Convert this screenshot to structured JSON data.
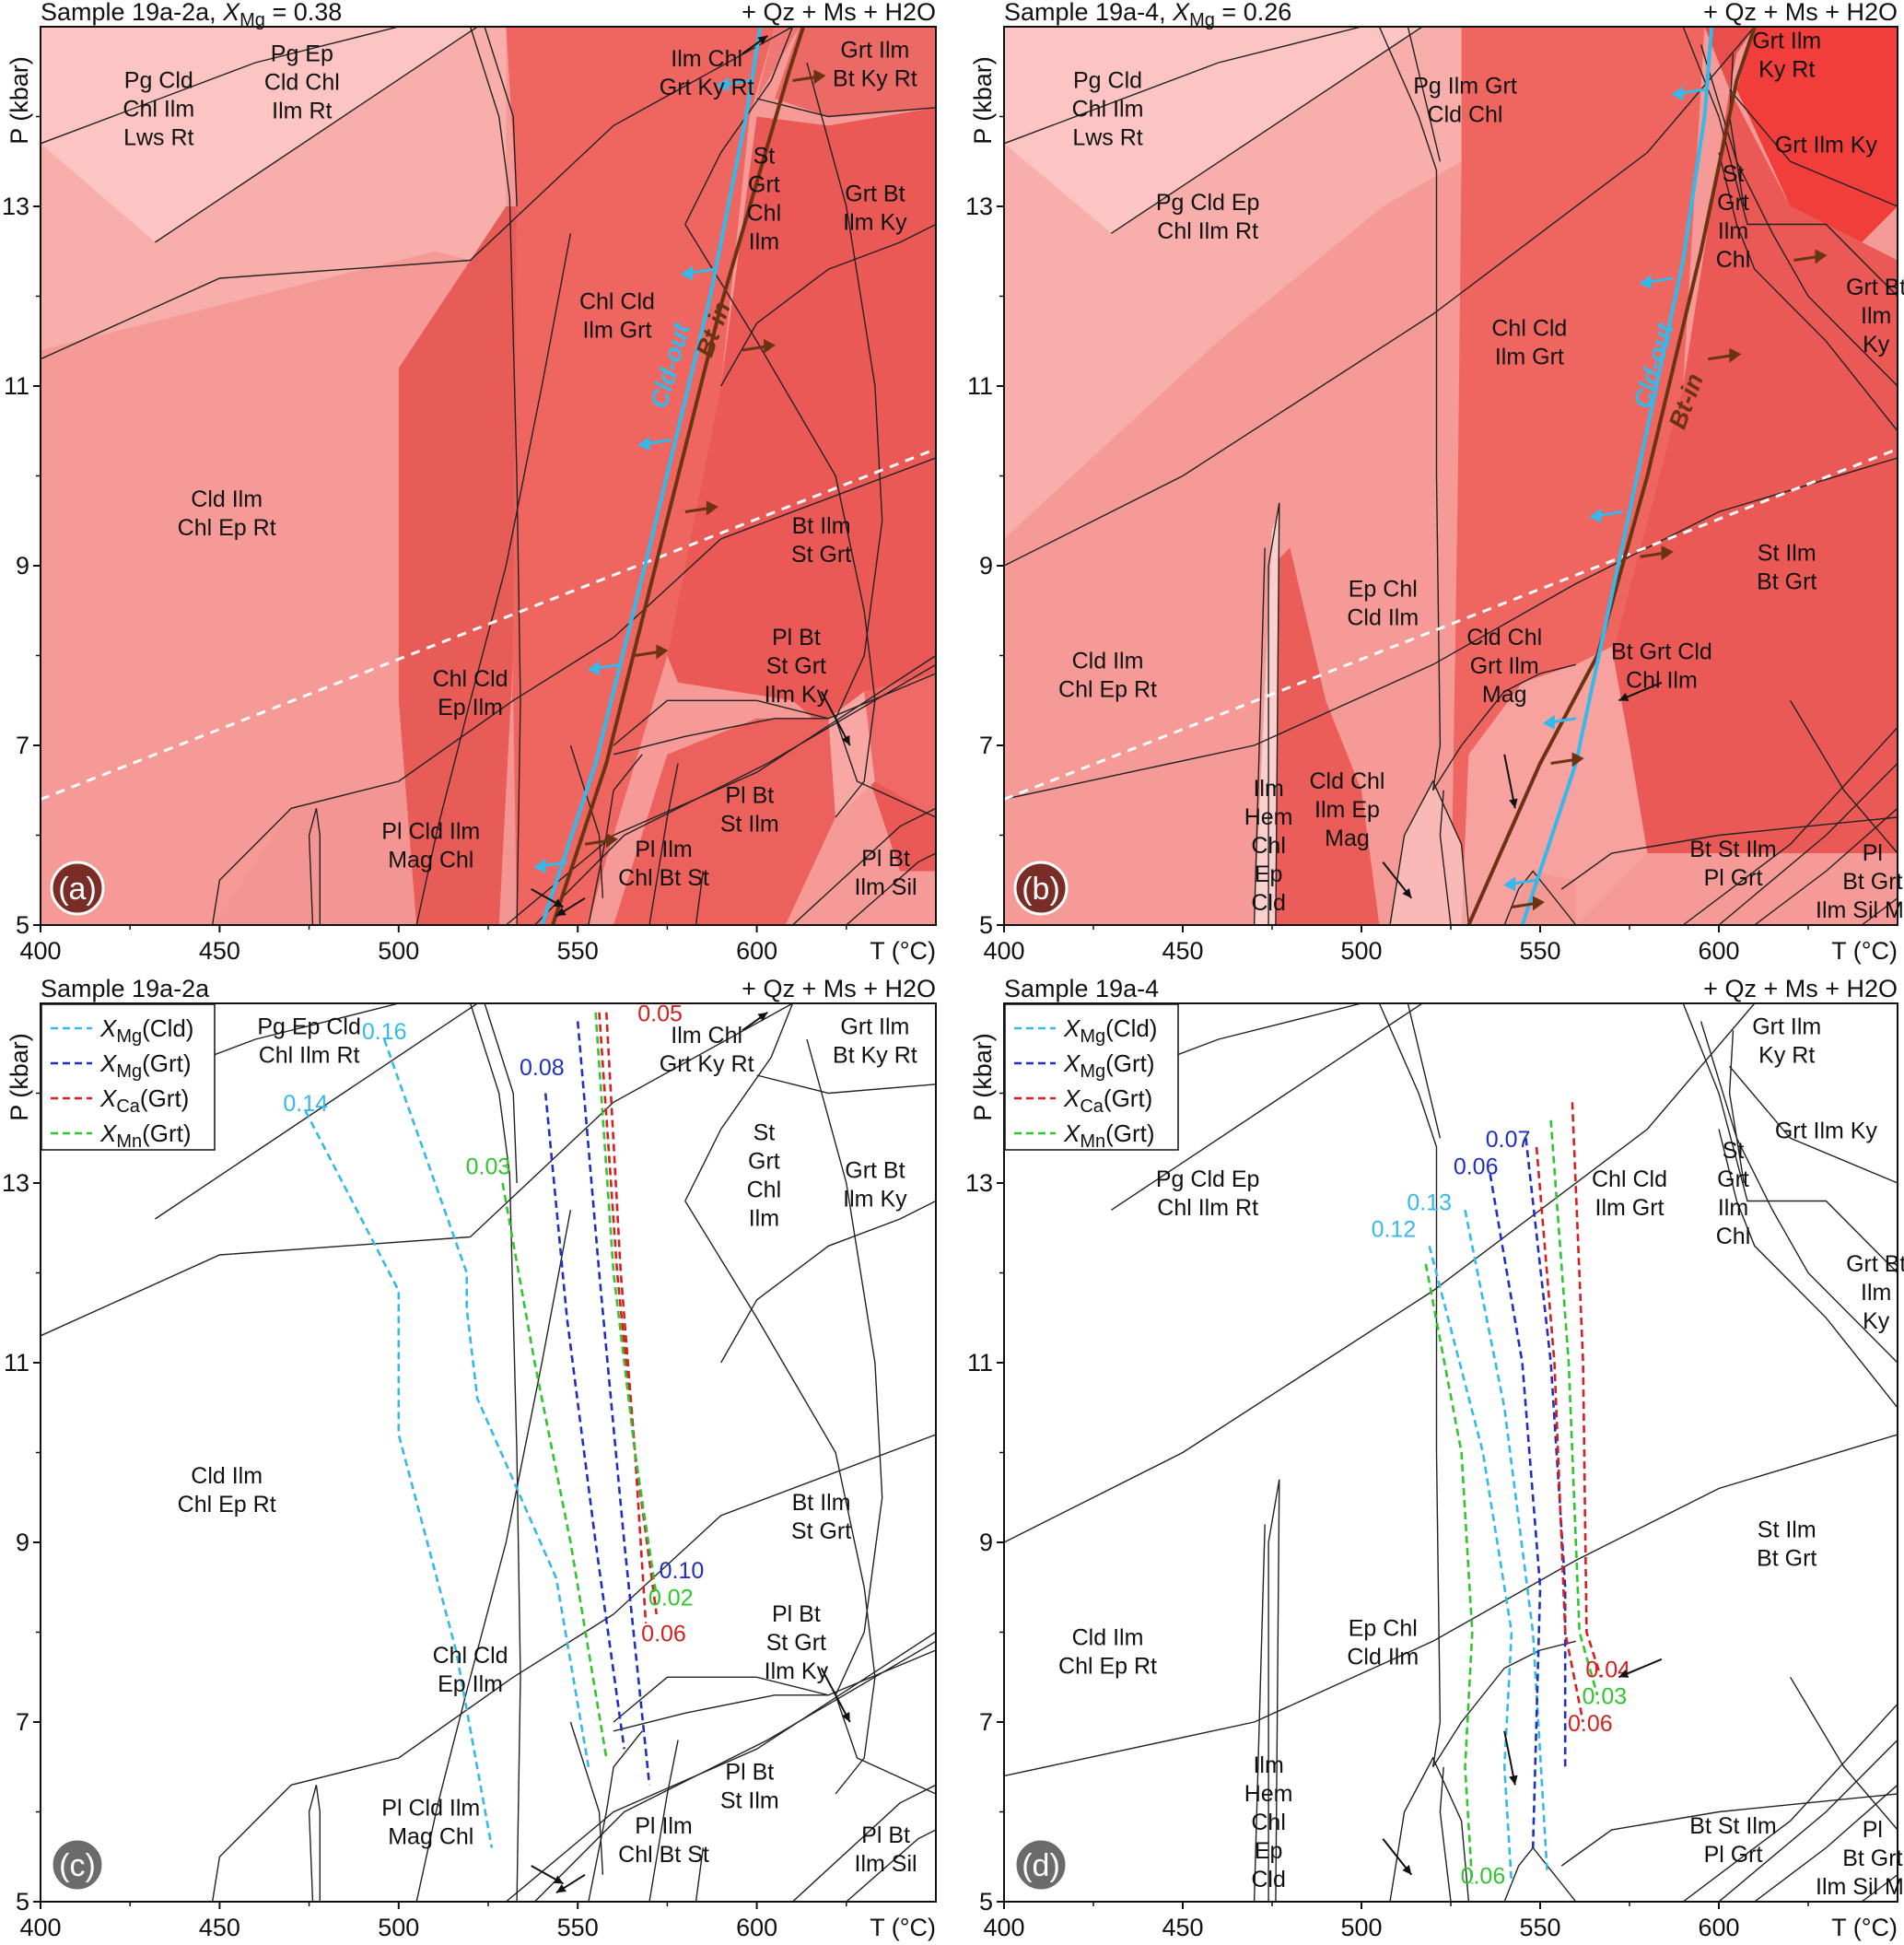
{
  "chart_data": [
    {
      "type": "area",
      "panel": "a",
      "title": "Sample 19a-2a, XMg = 0.38",
      "title_parts": {
        "name": "Sample 19a-2a, ",
        "var": "X",
        "sub": "Mg",
        "value": " = 0.38"
      },
      "assemblage": "+ Qz + Ms + H2O",
      "xlabel": "T (°C)",
      "ylabel": "P (kbar)",
      "xlim": [
        400,
        650
      ],
      "ylim": [
        5,
        15
      ],
      "xticks": [
        400,
        450,
        500,
        550,
        600
      ],
      "yticks": [
        5,
        7,
        9,
        11,
        13
      ],
      "background_color": "#f59a96",
      "fields": [
        {
          "label": "Pg Cld\nChl Ilm\nLws Rt",
          "at": [
            433,
            14.0
          ]
        },
        {
          "label": "Pg Ep\nCld Chl\nIlm Rt",
          "at": [
            473,
            14.3
          ]
        },
        {
          "label": "Ilm Chl\nGrt Ky Rt",
          "at": [
            586,
            14.4
          ]
        },
        {
          "label": "Grt Ilm\nBt Ky Rt",
          "at": [
            633,
            14.5
          ]
        },
        {
          "label": "St\nGrt\nChl\nIlm",
          "at": [
            602,
            13.0
          ]
        },
        {
          "label": "Grt Bt\nIlm Ky",
          "at": [
            633,
            12.9
          ]
        },
        {
          "label": "Chl Cld\nIlm Grt",
          "at": [
            561,
            11.7
          ]
        },
        {
          "label": "Cld Ilm\nChl Ep Rt",
          "at": [
            452,
            9.5
          ]
        },
        {
          "label": "Bt Ilm\nSt Grt",
          "at": [
            618,
            9.2
          ]
        },
        {
          "label": "Chl Cld\nEp Ilm",
          "at": [
            520,
            7.5
          ]
        },
        {
          "label": "Pl Bt\nSt Grt\nIlm Ky",
          "at": [
            611,
            7.8
          ]
        },
        {
          "label": "Pl Bt\nSt Ilm",
          "at": [
            598,
            6.2
          ]
        },
        {
          "label": "Pl Cld Ilm\nMag Chl",
          "at": [
            509,
            5.8
          ]
        },
        {
          "label": "Pl Ilm\nChl Bt St",
          "at": [
            574,
            5.6
          ]
        },
        {
          "label": "Pl Bt\nIlm Sil",
          "at": [
            636,
            5.5
          ]
        }
      ],
      "curves": [
        {
          "name": "Cld-out",
          "color": "#33b9ea"
        },
        {
          "name": "Bt-in",
          "color": "#6b3314"
        }
      ]
    },
    {
      "type": "area",
      "panel": "b",
      "title": "Sample 19a-4, XMg = 0.26",
      "title_parts": {
        "name": "Sample 19a-4, ",
        "var": "X",
        "sub": "Mg",
        "value": " = 0.26"
      },
      "assemblage": "+ Qz + Ms + H2O",
      "xlabel": "T (°C)",
      "ylabel": "P (kbar)",
      "xlim": [
        400,
        650
      ],
      "ylim": [
        5,
        15
      ],
      "xticks": [
        400,
        450,
        500,
        550,
        600
      ],
      "yticks": [
        5,
        7,
        9,
        11,
        13
      ],
      "background_color": "#f59a96",
      "fields": [
        {
          "label": "Pg Cld\nChl Ilm\nLws Rt",
          "at": [
            429,
            14.0
          ]
        },
        {
          "label": "Pg Ilm Grt\nCld Chl",
          "at": [
            529,
            14.1
          ]
        },
        {
          "label": "Grt Ilm\nKy Rt",
          "at": [
            619,
            14.6
          ]
        },
        {
          "label": "Grt Ilm Ky",
          "at": [
            630,
            13.6
          ]
        },
        {
          "label": "Pg Cld Ep\nChl Ilm Rt",
          "at": [
            457,
            12.8
          ]
        },
        {
          "label": "St\nGrt\nIlm\nChl",
          "at": [
            604,
            12.8
          ]
        },
        {
          "label": "Grt Bt\nIlm\nKy",
          "at": [
            644,
            11.7
          ]
        },
        {
          "label": "Chl Cld\nIlm Grt",
          "at": [
            547,
            11.4
          ]
        },
        {
          "label": "St Ilm\nBt Grt",
          "at": [
            619,
            8.9
          ]
        },
        {
          "label": "Ep Chl\nCld Ilm",
          "at": [
            506,
            8.5
          ]
        },
        {
          "label": "Cld Ilm\nChl Ep Rt",
          "at": [
            429,
            7.7
          ]
        },
        {
          "label": "Cld Chl\nGrt Ilm\nMag",
          "at": [
            540,
            7.8
          ]
        },
        {
          "label": "Bt Grt Cld\nChl Ilm",
          "at": [
            584,
            7.8
          ]
        },
        {
          "label": "Ilm\nHem\nChl\nEp\nCld",
          "at": [
            474,
            5.8
          ]
        },
        {
          "label": "Cld Chl\nIlm Ep\nMag",
          "at": [
            496,
            6.2
          ]
        },
        {
          "label": "Bt St Ilm\nPl Grt",
          "at": [
            604,
            5.6
          ]
        },
        {
          "label": "Pl\nBt Grt\nIlm Sil Mag",
          "at": [
            643,
            5.4
          ]
        }
      ],
      "curves": [
        {
          "name": "Cld-out",
          "color": "#33b9ea"
        },
        {
          "name": "Bt-in",
          "color": "#6b3314"
        }
      ]
    },
    {
      "type": "line",
      "panel": "c",
      "title": "Sample 19a-2a",
      "assemblage": "+ Qz + Ms + H2O",
      "xlabel": "T (°C)",
      "ylabel": "P (kbar)",
      "xlim": [
        400,
        650
      ],
      "ylim": [
        5,
        15
      ],
      "xticks": [
        400,
        450,
        500,
        550,
        600
      ],
      "yticks": [
        5,
        7,
        9,
        11,
        13
      ],
      "legend": {
        "placement": "top-left",
        "entries": [
          {
            "label": "XMg(Cld)",
            "var": "X",
            "sub": "Mg",
            "suffix": "(Cld)",
            "color": "#33b9ea"
          },
          {
            "label": "XMg(Grt)",
            "var": "X",
            "sub": "Mg",
            "suffix": "(Grt)",
            "color": "#1f2fc4"
          },
          {
            "label": "XCa(Grt)",
            "var": "X",
            "sub": "Ca",
            "suffix": "(Grt)",
            "color": "#d61f1f"
          },
          {
            "label": "XMn(Grt)",
            "var": "X",
            "sub": "Mn",
            "suffix": "(Grt)",
            "color": "#2fc52f"
          }
        ]
      },
      "isopleth_labels": [
        {
          "text": "0.16",
          "color": "#33b9ea",
          "at": [
            496,
            14.6
          ]
        },
        {
          "text": "0.14",
          "color": "#33b9ea",
          "at": [
            474,
            13.8
          ]
        },
        {
          "text": "0.08",
          "color": "#1f2fc4",
          "at": [
            540,
            14.2
          ]
        },
        {
          "text": "0.05",
          "color": "#d61f1f",
          "at": [
            573,
            14.8
          ]
        },
        {
          "text": "0.03",
          "color": "#2fc52f",
          "at": [
            525,
            13.1
          ]
        },
        {
          "text": "0.10",
          "color": "#1f2fc4",
          "at": [
            579,
            8.6
          ]
        },
        {
          "text": "0.02",
          "color": "#2fc52f",
          "at": [
            576,
            8.3
          ]
        },
        {
          "text": "0.06",
          "color": "#d61f1f",
          "at": [
            574,
            7.9
          ]
        }
      ],
      "fields": [
        {
          "label": "Pg Ep Cld\nChl Ilm Rt",
          "at": [
            475,
            14.5
          ]
        },
        {
          "label": "Ilm Chl\nGrt Ky Rt",
          "at": [
            586,
            14.4
          ]
        },
        {
          "label": "Grt Ilm\nBt Ky Rt",
          "at": [
            633,
            14.5
          ]
        },
        {
          "label": "St\nGrt\nChl\nIlm",
          "at": [
            602,
            13.0
          ]
        },
        {
          "label": "Grt Bt\nIlm Ky",
          "at": [
            633,
            12.9
          ]
        },
        {
          "label": "Cld Ilm\nChl Ep Rt",
          "at": [
            452,
            9.5
          ]
        },
        {
          "label": "Bt Ilm\nSt Grt",
          "at": [
            618,
            9.2
          ]
        },
        {
          "label": "Chl Cld\nEp Ilm",
          "at": [
            520,
            7.5
          ]
        },
        {
          "label": "Pl Bt\nSt Grt\nIlm Ky",
          "at": [
            611,
            7.8
          ]
        },
        {
          "label": "Pl Bt\nSt Ilm",
          "at": [
            598,
            6.2
          ]
        },
        {
          "label": "Pl Cld Ilm\nMag Chl",
          "at": [
            509,
            5.8
          ]
        },
        {
          "label": "Pl Ilm\nChl Bt St",
          "at": [
            574,
            5.6
          ]
        },
        {
          "label": "Pl Bt\nIlm Sil",
          "at": [
            636,
            5.5
          ]
        }
      ],
      "isopleths": [
        {
          "series": "XMg(Cld)",
          "color": "#33b9ea",
          "x": [
            496,
            519,
            519,
            522,
            544,
            553
          ],
          "y": [
            14.6,
            12.0,
            11.6,
            10.6,
            8.6,
            6.5
          ]
        },
        {
          "series": "XMg(Cld)",
          "color": "#33b9ea",
          "x": [
            474,
            500,
            500,
            516,
            526
          ],
          "y": [
            13.8,
            11.8,
            10.2,
            7.8,
            5.6
          ]
        },
        {
          "series": "XMg(Grt)",
          "color": "#1f2fc4",
          "x": [
            550,
            556,
            563,
            570
          ],
          "y": [
            14.8,
            12.0,
            9.0,
            6.3
          ]
        },
        {
          "series": "XMg(Grt)",
          "color": "#1f2fc4",
          "x": [
            541,
            547,
            555,
            563
          ],
          "y": [
            14.0,
            11.5,
            9.0,
            6.7
          ]
        },
        {
          "series": "XCa(Grt)",
          "color": "#d61f1f",
          "x": [
            558,
            562,
            566,
            569
          ],
          "y": [
            14.9,
            12.0,
            10.0,
            8.1
          ]
        },
        {
          "series": "XCa(Grt)",
          "color": "#d61f1f",
          "x": [
            556,
            561,
            566,
            572
          ],
          "y": [
            14.9,
            12.0,
            10.0,
            8.2
          ]
        },
        {
          "series": "XMn(Grt)",
          "color": "#2fc52f",
          "x": [
            555,
            560,
            566,
            572
          ],
          "y": [
            14.9,
            12.0,
            10.0,
            8.4
          ]
        },
        {
          "series": "XMn(Grt)",
          "color": "#2fc52f",
          "x": [
            529,
            538,
            548,
            558
          ],
          "y": [
            13.0,
            11.0,
            9.0,
            6.6
          ]
        }
      ]
    },
    {
      "type": "line",
      "panel": "d",
      "title": "Sample 19a-4",
      "assemblage": "+ Qz + Ms + H2O",
      "xlabel": "T (°C)",
      "ylabel": "P (kbar)",
      "xlim": [
        400,
        650
      ],
      "ylim": [
        5,
        15
      ],
      "xticks": [
        400,
        450,
        500,
        550,
        600
      ],
      "yticks": [
        5,
        7,
        9,
        11,
        13
      ],
      "legend": {
        "placement": "top-left",
        "entries": [
          {
            "label": "XMg(Cld)",
            "var": "X",
            "sub": "Mg",
            "suffix": "(Cld)",
            "color": "#33b9ea"
          },
          {
            "label": "XMg(Grt)",
            "var": "X",
            "sub": "Mg",
            "suffix": "(Grt)",
            "color": "#1f2fc4"
          },
          {
            "label": "XCa(Grt)",
            "var": "X",
            "sub": "Ca",
            "suffix": "(Grt)",
            "color": "#d61f1f"
          },
          {
            "label": "XMn(Grt)",
            "var": "X",
            "sub": "Mn",
            "suffix": "(Grt)",
            "color": "#2fc52f"
          }
        ]
      },
      "isopleth_labels": [
        {
          "text": "0.07",
          "color": "#1f2fc4",
          "at": [
            541,
            13.4
          ]
        },
        {
          "text": "0.06",
          "color": "#1f2fc4",
          "at": [
            532,
            13.1
          ]
        },
        {
          "text": "0.13",
          "color": "#33b9ea",
          "at": [
            519,
            12.7
          ]
        },
        {
          "text": "0.12",
          "color": "#33b9ea",
          "at": [
            509,
            12.4
          ]
        },
        {
          "text": "0.04",
          "color": "#d61f1f",
          "at": [
            569,
            7.5
          ]
        },
        {
          "text": "0.03",
          "color": "#2fc52f",
          "at": [
            568,
            7.2
          ]
        },
        {
          "text": "0.06",
          "color": "#d61f1f",
          "at": [
            564,
            6.9
          ]
        },
        {
          "text": "0.06",
          "color": "#2fc52f",
          "at": [
            534,
            5.2
          ]
        }
      ],
      "fields": [
        {
          "label": "Grt Ilm\nKy Rt",
          "at": [
            619,
            14.5
          ]
        },
        {
          "label": "Grt Ilm Ky",
          "at": [
            630,
            13.5
          ]
        },
        {
          "label": "Pg Cld Ep\nChl Ilm Rt",
          "at": [
            457,
            12.8
          ]
        },
        {
          "label": "Chl Cld\nIlm Grt",
          "at": [
            575,
            12.8
          ]
        },
        {
          "label": "St\nGrt\nIlm\nChl",
          "at": [
            604,
            12.8
          ]
        },
        {
          "label": "Grt Bt\nIlm\nKy",
          "at": [
            644,
            11.7
          ]
        },
        {
          "label": "St Ilm\nBt Grt",
          "at": [
            619,
            8.9
          ]
        },
        {
          "label": "Ep Chl\nCld Ilm",
          "at": [
            506,
            7.8
          ]
        },
        {
          "label": "Cld Ilm\nChl Ep Rt",
          "at": [
            429,
            7.7
          ]
        },
        {
          "label": "Ilm\nHem\nChl\nEp\nCld",
          "at": [
            474,
            5.8
          ]
        },
        {
          "label": "Bt St Ilm\nPl Grt",
          "at": [
            604,
            5.6
          ]
        },
        {
          "label": "Pl\nBt Grt\nIlm Sil Mag",
          "at": [
            643,
            5.4
          ]
        }
      ],
      "isopleths": [
        {
          "series": "XMg(Cld)",
          "color": "#33b9ea",
          "x": [
            529,
            540,
            548,
            552
          ],
          "y": [
            12.7,
            10.5,
            8.0,
            5.3
          ]
        },
        {
          "series": "XMg(Cld)",
          "color": "#33b9ea",
          "x": [
            519,
            534,
            542,
            540,
            542
          ],
          "y": [
            12.3,
            10.0,
            8.0,
            6.5,
            5.2
          ]
        },
        {
          "series": "XMg(Grt)",
          "color": "#1f2fc4",
          "x": [
            546,
            553,
            557,
            557
          ],
          "y": [
            13.5,
            11.0,
            8.5,
            6.5
          ]
        },
        {
          "series": "XMg(Grt)",
          "color": "#1f2fc4",
          "x": [
            536,
            545,
            550,
            548
          ],
          "y": [
            13.1,
            11.0,
            8.5,
            5.6
          ]
        },
        {
          "series": "XCa(Grt)",
          "color": "#d61f1f",
          "x": [
            559,
            562,
            563,
            567
          ],
          "y": [
            13.9,
            11.0,
            8.0,
            7.5
          ]
        },
        {
          "series": "XCa(Grt)",
          "color": "#d61f1f",
          "x": [
            549,
            554,
            557,
            562
          ],
          "y": [
            13.4,
            11.0,
            8.0,
            7.0
          ]
        },
        {
          "series": "XMn(Grt)",
          "color": "#2fc52f",
          "x": [
            553,
            558,
            561,
            566
          ],
          "y": [
            13.7,
            11.0,
            8.0,
            7.3
          ]
        },
        {
          "series": "XMn(Grt)",
          "color": "#2fc52f",
          "x": [
            518,
            528,
            531,
            529,
            531
          ],
          "y": [
            12.1,
            10.0,
            8.0,
            6.5,
            5.2
          ]
        }
      ]
    }
  ]
}
